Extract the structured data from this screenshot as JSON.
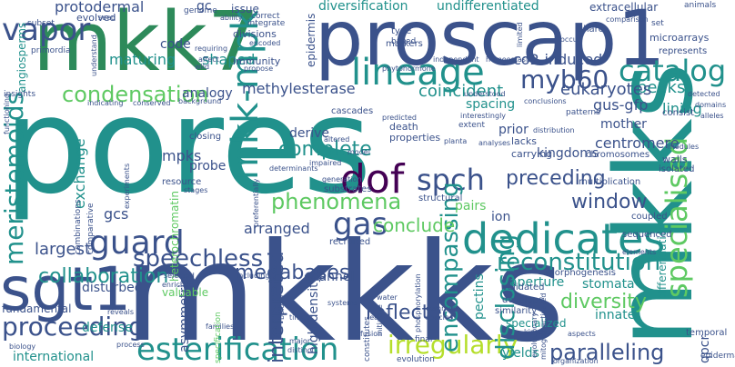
{
  "image_type": "word cloud",
  "palette": [
    "#440154",
    "#3b528b",
    "#21918c",
    "#5ec962",
    "#fde725"
  ],
  "words": [
    {
      "text": "pores",
      "color": "#21918c",
      "rotated": false
    },
    {
      "text": "mkkks",
      "color": "#3b528b",
      "rotated": false
    },
    {
      "text": "mkk7",
      "color": "#2d8a5a",
      "rotated": false
    },
    {
      "text": "proscap1",
      "color": "#3b528b",
      "rotated": false
    },
    {
      "text": "mkks",
      "color": "#21918c",
      "rotated": true
    },
    {
      "text": "lineage",
      "color": "#21918c",
      "rotated": false
    },
    {
      "text": "sgt1",
      "color": "#3b528b",
      "rotated": false
    },
    {
      "text": "dedicates",
      "color": "#21918c",
      "rotated": false
    },
    {
      "text": "esterification",
      "color": "#21918c",
      "rotated": false
    },
    {
      "text": "mkk-mpk",
      "color": "#21918c",
      "rotated": true
    },
    {
      "text": "specialised",
      "color": "#5ec962",
      "rotated": true
    },
    {
      "text": "vapor",
      "color": "#3b528b",
      "rotated": false
    },
    {
      "text": "guard",
      "color": "#3b528b",
      "rotated": false
    },
    {
      "text": "proceeding",
      "color": "#3b528b",
      "rotated": false
    },
    {
      "text": "irregularly",
      "color": "#b5de2b",
      "rotated": false
    },
    {
      "text": "dof",
      "color": "#440154",
      "rotated": false
    },
    {
      "text": "spch",
      "color": "#3b528b",
      "rotated": false
    },
    {
      "text": "catalog",
      "color": "#21918c",
      "rotated": false
    },
    {
      "text": "myb60",
      "color": "#3b528b",
      "rotated": false
    },
    {
      "text": "meristemoids",
      "color": "#21918c",
      "rotated": true
    },
    {
      "text": "speechless",
      "color": "#3b528b",
      "rotated": false
    },
    {
      "text": "reconstitution",
      "color": "#21918c",
      "rotated": false
    },
    {
      "text": "gas",
      "color": "#3b528b",
      "rotated": false
    },
    {
      "text": "condensation",
      "color": "#5ec962",
      "rotated": false
    },
    {
      "text": "phenomena",
      "color": "#5ec962",
      "rotated": false
    },
    {
      "text": "disclosing",
      "color": "#21918c",
      "rotated": true
    },
    {
      "text": "encompassing",
      "color": "#21918c",
      "rotated": true
    },
    {
      "text": "paralleling",
      "color": "#3b528b",
      "rotated": false
    },
    {
      "text": "megabases",
      "color": "#3b528b",
      "rotated": false
    },
    {
      "text": "complete",
      "color": "#21918c",
      "rotated": false
    },
    {
      "text": "reflected",
      "color": "#3b528b",
      "rotated": false
    },
    {
      "text": "collaboration",
      "color": "#21918c",
      "rotated": false
    },
    {
      "text": "preceding",
      "color": "#3b528b",
      "rotated": false
    },
    {
      "text": "diversity",
      "color": "#5ec962",
      "rotated": false
    },
    {
      "text": "interpreted",
      "color": "#3b528b",
      "rotated": true
    },
    {
      "text": "window",
      "color": "#3b528b",
      "rotated": false
    },
    {
      "text": "conclude",
      "color": "#5ec962",
      "rotated": false
    },
    {
      "text": "largest",
      "color": "#3b528b",
      "rotated": false
    },
    {
      "text": "protodermal",
      "color": "#3b528b",
      "rotated": false
    },
    {
      "text": "diversification",
      "color": "#21918c",
      "rotated": false
    },
    {
      "text": "undifferentiated",
      "color": "#21918c",
      "rotated": false
    },
    {
      "text": "lining",
      "color": "#21918c",
      "rotated": false
    },
    {
      "text": "peaks",
      "color": "#21918c",
      "rotated": false
    },
    {
      "text": "gus-gfp",
      "color": "#3b528b",
      "rotated": false
    },
    {
      "text": "eukaryotes",
      "color": "#3b528b",
      "rotated": false
    },
    {
      "text": "methylesterase",
      "color": "#3b528b",
      "rotated": false
    },
    {
      "text": "coincident",
      "color": "#21918c",
      "rotated": false
    },
    {
      "text": "co2-induced",
      "color": "#3b528b",
      "rotated": false
    },
    {
      "text": "analogy",
      "color": "#3b528b",
      "rotated": false
    },
    {
      "text": "maturing",
      "color": "#21918c",
      "rotated": false
    },
    {
      "text": "shaped",
      "color": "#21918c",
      "rotated": false
    },
    {
      "text": "code",
      "color": "#3b528b",
      "rotated": false
    },
    {
      "text": "centromere",
      "color": "#3b528b",
      "rotated": false
    },
    {
      "text": "kingdoms",
      "color": "#3b528b",
      "rotated": false
    },
    {
      "text": "mother",
      "color": "#3b528b",
      "rotated": false
    },
    {
      "text": "derive",
      "color": "#3b528b",
      "rotated": false
    },
    {
      "text": "mpks",
      "color": "#3b528b",
      "rotated": false
    },
    {
      "text": "probe",
      "color": "#3b528b",
      "rotated": false
    },
    {
      "text": "exchange",
      "color": "#21918c",
      "rotated": true
    },
    {
      "text": "gcs",
      "color": "#3b528b",
      "rotated": false
    },
    {
      "text": "disturbed",
      "color": "#3b528b",
      "rotated": false
    },
    {
      "text": "fundamental",
      "color": "#3b528b",
      "rotated": false
    },
    {
      "text": "defense",
      "color": "#21918c",
      "rotated": false
    },
    {
      "text": "international",
      "color": "#21918c",
      "rotated": false
    },
    {
      "text": "arranged",
      "color": "#3b528b",
      "rotated": false
    },
    {
      "text": "channel",
      "color": "#3b528b",
      "rotated": false
    },
    {
      "text": "aperture",
      "color": "#21918c",
      "rotated": false
    },
    {
      "text": "stomata",
      "color": "#21918c",
      "rotated": false
    },
    {
      "text": "innate",
      "color": "#21918c",
      "rotated": false
    },
    {
      "text": "pectins",
      "color": "#21918c",
      "rotated": true
    },
    {
      "text": "high-density",
      "color": "#3b528b",
      "rotated": true
    },
    {
      "text": "asymmetric",
      "color": "#3b528b",
      "rotated": true
    },
    {
      "text": "valuable",
      "color": "#5ec962",
      "rotated": false
    },
    {
      "text": "ion",
      "color": "#3b528b",
      "rotated": false
    },
    {
      "text": "pairs",
      "color": "#5ec962",
      "rotated": false
    },
    {
      "text": "yields",
      "color": "#21918c",
      "rotated": false
    },
    {
      "text": "qpcr",
      "color": "#3b528b",
      "rotated": true
    },
    {
      "text": "spacing",
      "color": "#21918c",
      "rotated": false
    },
    {
      "text": "prior",
      "color": "#3b528b",
      "rotated": false
    },
    {
      "text": "heterochromatin",
      "color": "#5ec962",
      "rotated": true
    },
    {
      "text": "epidermis",
      "color": "#3b528b",
      "rotated": true
    },
    {
      "text": "gc",
      "color": "#3b528b",
      "rotated": false
    },
    {
      "text": "issue",
      "color": "#3b528b",
      "rotated": false
    },
    {
      "text": "extracellular",
      "color": "#3b528b",
      "rotated": false
    },
    {
      "text": "specialized",
      "color": "#21918c",
      "rotated": false
    },
    {
      "text": "differentiation",
      "color": "#21918c",
      "rotated": true
    },
    {
      "text": "angiosperms",
      "color": "#21918c",
      "rotated": true
    },
    {
      "text": "evolved",
      "color": "#3b528b",
      "rotated": false
    },
    {
      "text": "divisions",
      "color": "#3b528b",
      "rotated": false
    },
    {
      "text": "immunity",
      "color": "#3b528b",
      "rotated": false
    },
    {
      "text": "lacks",
      "color": "#3b528b",
      "rotated": false
    },
    {
      "text": "carrying",
      "color": "#3b528b",
      "rotated": false
    },
    {
      "text": "chromosomes",
      "color": "#3b528b",
      "rotated": false
    },
    {
      "text": "walls",
      "color": "#3b528b",
      "rotated": false
    },
    {
      "text": "isolated",
      "color": "#3b528b",
      "rotated": false
    },
    {
      "text": "microarrays",
      "color": "#3b528b",
      "rotated": false
    },
    {
      "text": "represents",
      "color": "#3b528b",
      "rotated": false
    },
    {
      "text": "consist",
      "color": "#3b528b",
      "rotated": false
    },
    {
      "text": "temporal",
      "color": "#3b528b",
      "rotated": false
    },
    {
      "text": "epidermal",
      "color": "#3b528b",
      "rotated": false
    },
    {
      "text": "sequenced",
      "color": "#3b528b",
      "rotated": false
    },
    {
      "text": "coupled",
      "color": "#3b528b",
      "rotated": false
    },
    {
      "text": "resource",
      "color": "#3b528b",
      "rotated": false
    },
    {
      "text": "closing",
      "color": "#3b528b",
      "rotated": false
    },
    {
      "text": "cascades",
      "color": "#3b528b",
      "rotated": false
    },
    {
      "text": "substrates",
      "color": "#3b528b",
      "rotated": false
    },
    {
      "text": "structural",
      "color": "#3b528b",
      "rotated": false
    },
    {
      "text": "recruited",
      "color": "#3b528b",
      "rotated": false
    },
    {
      "text": "validated",
      "color": "#3b528b",
      "rotated": false
    },
    {
      "text": "develops",
      "color": "#3b528b",
      "rotated": false
    },
    {
      "text": "similarity",
      "color": "#3b528b",
      "rotated": false
    },
    {
      "text": "morphogenesis",
      "color": "#3b528b",
      "rotated": false
    },
    {
      "text": "death",
      "color": "#3b528b",
      "rotated": false
    },
    {
      "text": "properties",
      "color": "#3b528b",
      "rotated": false
    },
    {
      "text": "multiplication",
      "color": "#3b528b",
      "rotated": false
    },
    {
      "text": "genome",
      "color": "#3b528b",
      "rotated": false
    },
    {
      "text": "correct",
      "color": "#3b528b",
      "rotated": false
    },
    {
      "text": "integrate",
      "color": "#3b528b",
      "rotated": false
    },
    {
      "text": "markers",
      "color": "#3b528b",
      "rotated": false
    },
    {
      "text": "type",
      "color": "#3b528b",
      "rotated": false
    },
    {
      "text": "based",
      "color": "#3b528b",
      "rotated": false
    },
    {
      "text": "share",
      "color": "#3b528b",
      "rotated": false
    },
    {
      "text": "set",
      "color": "#3b528b",
      "rotated": false
    },
    {
      "text": "animals",
      "color": "#3b528b",
      "rotated": false
    },
    {
      "text": "insights",
      "color": "#3b528b",
      "rotated": false
    },
    {
      "text": "subset",
      "color": "#3b528b",
      "rotated": false
    },
    {
      "text": "primordia",
      "color": "#3b528b",
      "rotated": false
    },
    {
      "text": "seed",
      "color": "#3b528b",
      "rotated": false
    },
    {
      "text": "requiring",
      "color": "#3b528b",
      "rotated": false
    },
    {
      "text": "wild",
      "color": "#3b528b",
      "rotated": false
    },
    {
      "text": "encoded",
      "color": "#3b528b",
      "rotated": false
    },
    {
      "text": "propose",
      "color": "#3b528b",
      "rotated": false
    },
    {
      "text": "independent",
      "color": "#3b528b",
      "rotated": false
    },
    {
      "text": "homeostasis",
      "color": "#3b528b",
      "rotated": false
    },
    {
      "text": "comparison",
      "color": "#3b528b",
      "rotated": false
    },
    {
      "text": "occur",
      "color": "#3b528b",
      "rotated": false
    },
    {
      "text": "detected",
      "color": "#3b528b",
      "rotated": false
    },
    {
      "text": "domains",
      "color": "#3b528b",
      "rotated": false
    },
    {
      "text": "alleles",
      "color": "#3b528b",
      "rotated": false
    },
    {
      "text": "modules",
      "color": "#3b528b",
      "rotated": false
    },
    {
      "text": "elements",
      "color": "#3b528b",
      "rotated": false
    },
    {
      "text": "aspects",
      "color": "#3b528b",
      "rotated": false
    },
    {
      "text": "kinases",
      "color": "#3b528b",
      "rotated": false
    },
    {
      "text": "organization",
      "color": "#3b528b",
      "rotated": false
    },
    {
      "text": "final",
      "color": "#3b528b",
      "rotated": false
    },
    {
      "text": "fusion",
      "color": "#3b528b",
      "rotated": false
    },
    {
      "text": "evolution",
      "color": "#3b528b",
      "rotated": false
    },
    {
      "text": "biology",
      "color": "#3b528b",
      "rotated": false
    },
    {
      "text": "process",
      "color": "#3b528b",
      "rotated": false
    },
    {
      "text": "reveals",
      "color": "#3b528b",
      "rotated": false
    },
    {
      "text": "families",
      "color": "#3b528b",
      "rotated": false
    },
    {
      "text": "times",
      "color": "#3b528b",
      "rotated": false
    },
    {
      "text": "major",
      "color": "#3b528b",
      "rotated": false
    },
    {
      "text": "distinct",
      "color": "#3b528b",
      "rotated": false
    },
    {
      "text": "systems",
      "color": "#3b528b",
      "rotated": false
    },
    {
      "text": "including",
      "color": "#3b528b",
      "rotated": false
    },
    {
      "text": "selected",
      "color": "#3b528b",
      "rotated": false
    },
    {
      "text": "enriched",
      "color": "#3b528b",
      "rotated": false
    },
    {
      "text": "background",
      "color": "#3b528b",
      "rotated": false
    },
    {
      "text": "conserved",
      "color": "#3b528b",
      "rotated": false
    },
    {
      "text": "indicating",
      "color": "#3b528b",
      "rotated": false
    },
    {
      "text": "functioning",
      "color": "#3b528b",
      "rotated": true
    },
    {
      "text": "combinations",
      "color": "#3b528b",
      "rotated": true
    },
    {
      "text": "comparative",
      "color": "#3b528b",
      "rotated": true
    },
    {
      "text": "experiments",
      "color": "#3b528b",
      "rotated": true
    },
    {
      "text": "preferentially",
      "color": "#3b528b",
      "rotated": true
    },
    {
      "text": "determinants",
      "color": "#3b528b",
      "rotated": false
    },
    {
      "text": "generation",
      "color": "#3b528b",
      "rotated": false
    },
    {
      "text": "altered",
      "color": "#3b528b",
      "rotated": false
    },
    {
      "text": "predicted",
      "color": "#3b528b",
      "rotated": false
    },
    {
      "text": "interestingly",
      "color": "#3b528b",
      "rotated": false
    },
    {
      "text": "extent",
      "color": "#3b528b",
      "rotated": false
    },
    {
      "text": "analyses",
      "color": "#3b528b",
      "rotated": false
    },
    {
      "text": "planta",
      "color": "#3b528b",
      "rotated": false
    },
    {
      "text": "patterns",
      "color": "#3b528b",
      "rotated": false
    },
    {
      "text": "distribution",
      "color": "#3b528b",
      "rotated": false
    },
    {
      "text": "conclusions",
      "color": "#3b528b",
      "rotated": false
    },
    {
      "text": "understood",
      "color": "#3b528b",
      "rotated": false
    },
    {
      "text": "phytohormone",
      "color": "#3b528b",
      "rotated": false
    },
    {
      "text": "stages",
      "color": "#3b528b",
      "rotated": false
    },
    {
      "text": "belong",
      "color": "#3b528b",
      "rotated": true
    },
    {
      "text": "specification",
      "color": "#5ec962",
      "rotated": true
    },
    {
      "text": "constitutes",
      "color": "#3b528b",
      "rotated": true
    },
    {
      "text": "initiative",
      "color": "#3b528b",
      "rotated": true
    },
    {
      "text": "phosphorylation",
      "color": "#3b528b",
      "rotated": true
    },
    {
      "text": "common",
      "color": "#3b528b",
      "rotated": false
    },
    {
      "text": "species",
      "color": "#3b528b",
      "rotated": false
    },
    {
      "text": "water",
      "color": "#3b528b",
      "rotated": false
    },
    {
      "text": "leaf",
      "color": "#3b528b",
      "rotated": false
    },
    {
      "text": "evolutionary",
      "color": "#3b528b",
      "rotated": true
    },
    {
      "text": "mitogen-activated",
      "color": "#3b528b",
      "rotated": true
    },
    {
      "text": "understand",
      "color": "#3b528b",
      "rotated": true
    },
    {
      "text": "affect",
      "color": "#3b528b",
      "rotated": false
    },
    {
      "text": "ability",
      "color": "#3b528b",
      "rotated": false
    },
    {
      "text": "limited",
      "color": "#3b528b",
      "rotated": true
    },
    {
      "text": "impaired",
      "color": "#3b528b",
      "rotated": false
    },
    {
      "text": "model",
      "color": "#3b528b",
      "rotated": false
    }
  ]
}
